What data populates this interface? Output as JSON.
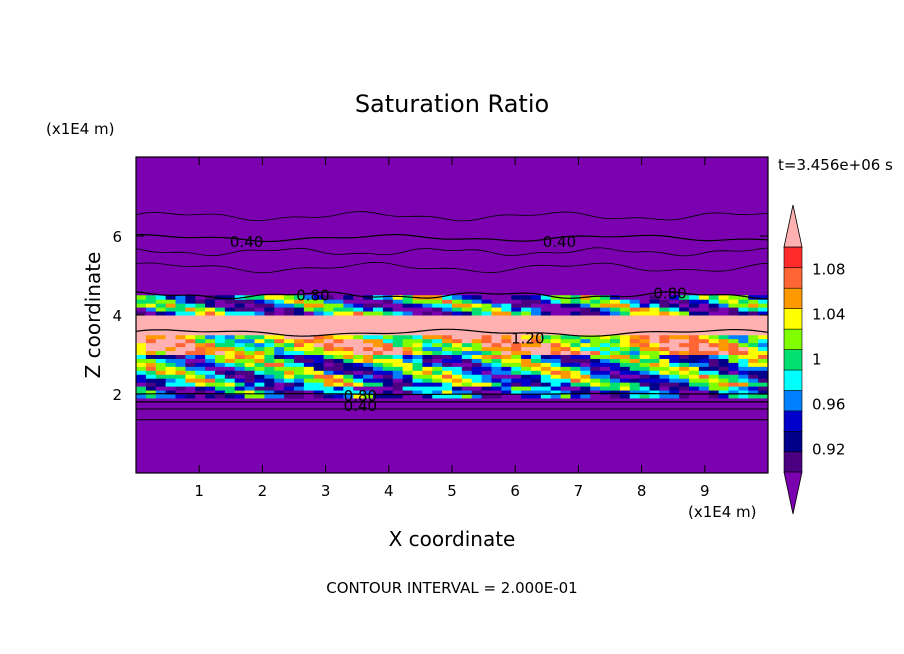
{
  "chart_data": {
    "type": "heatmap",
    "title": "Saturation Ratio",
    "xlabel": "X coordinate",
    "ylabel": "Z coordinate",
    "x_unit": "(x1E4 m)",
    "y_unit": "(x1E4 m)",
    "time_label": "t=3.456e+06 s",
    "footer": "CONTOUR INTERVAL = 2.000E-01",
    "xlim": [
      0,
      10
    ],
    "ylim": [
      0,
      8
    ],
    "x_ticks": [
      1,
      2,
      3,
      4,
      5,
      6,
      7,
      8,
      9
    ],
    "x_tick_labels": [
      "1",
      "2",
      "3",
      "4",
      "5",
      "6",
      "7",
      "8",
      "9"
    ],
    "y_ticks": [
      2,
      4,
      6
    ],
    "y_tick_labels": [
      "2",
      "4",
      "6"
    ],
    "colorbar": {
      "tick_labels": [
        "0.92",
        "0.96",
        "1",
        "1.04",
        "1.08"
      ],
      "tick_values": [
        0.92,
        0.96,
        1.0,
        1.04,
        1.08
      ],
      "levels": [
        0.9,
        0.92,
        0.94,
        0.96,
        0.98,
        1.0,
        1.02,
        1.04,
        1.06,
        1.08,
        1.1
      ],
      "colors": [
        "#4b0082",
        "#00008b",
        "#0000cd",
        "#0080ff",
        "#00ffff",
        "#00e070",
        "#7fff00",
        "#ffff00",
        "#ff9900",
        "#ff6633",
        "#ff2a2a"
      ],
      "under_color": "#7a00b0",
      "over_color": "#ffb0b0"
    },
    "bands": [
      {
        "z_range": [
          0,
          1.5
        ],
        "value": "below 0.90"
      },
      {
        "z_range": [
          2.0,
          3.9
        ],
        "value": "0.90 to above 1.10, mixed"
      },
      {
        "z_range": [
          3.5,
          4.0
        ],
        "value": "above 1.10"
      },
      {
        "z_range": [
          4.5,
          8
        ],
        "value": "below 0.90"
      }
    ],
    "contour_labels": [
      {
        "text": "0.40",
        "x": 1.75,
        "z": 5.85
      },
      {
        "text": "0.40",
        "x": 6.7,
        "z": 5.85
      },
      {
        "text": "0.80",
        "x": 2.8,
        "z": 4.5
      },
      {
        "text": "0.80",
        "x": 8.45,
        "z": 4.55
      },
      {
        "text": "1.20",
        "x": 6.2,
        "z": 3.4
      },
      {
        "text": "0.80",
        "x": 3.55,
        "z": 1.95
      },
      {
        "text": "0.40",
        "x": 3.55,
        "z": 1.7
      }
    ]
  }
}
